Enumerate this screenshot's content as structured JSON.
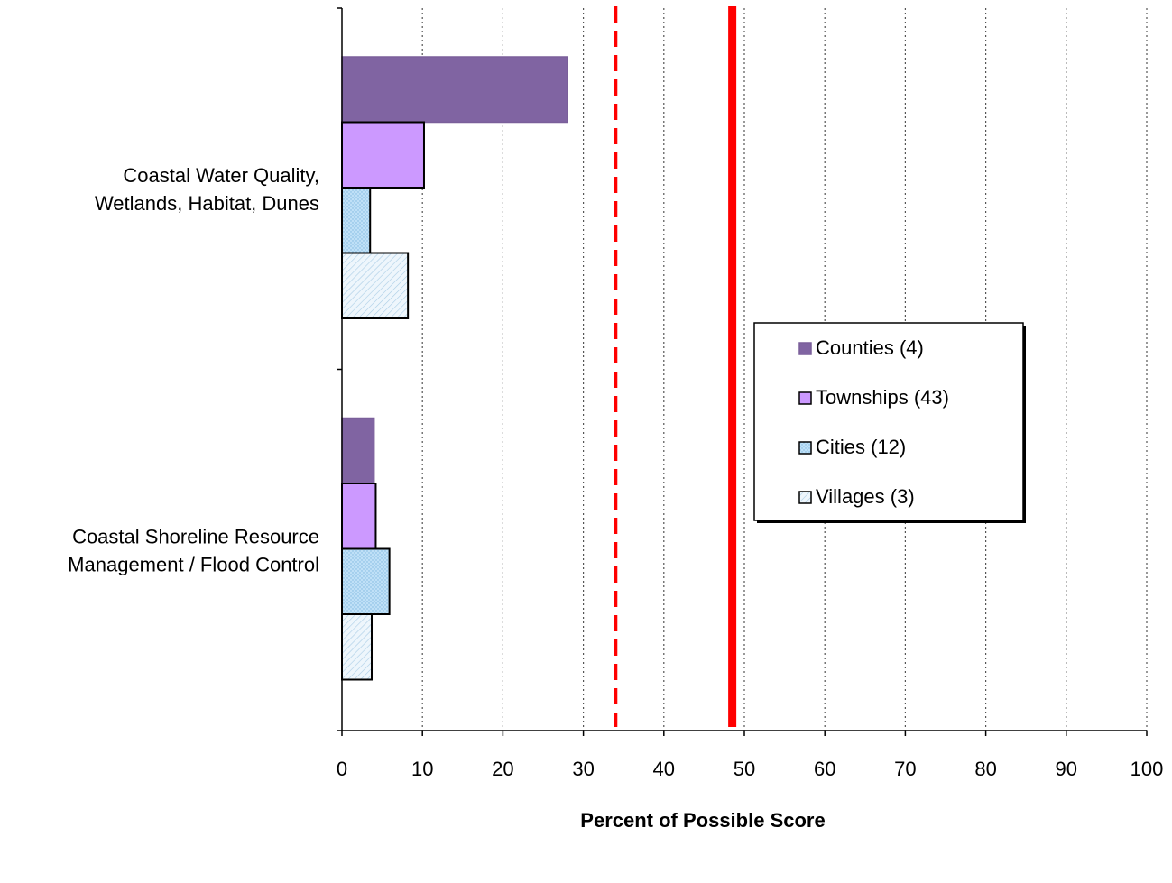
{
  "chart_data": {
    "type": "bar",
    "orientation": "horizontal",
    "xlabel": "Percent of Possible Score",
    "xlim": [
      0,
      100
    ],
    "x_ticks": [
      "0",
      "10",
      "20",
      "30",
      "40",
      "50",
      "60",
      "70",
      "80",
      "90",
      "100"
    ],
    "grid": "vertical dotted",
    "categories": [
      [
        "Coastal Water Quality,",
        "Wetlands, Habitat, Dunes"
      ],
      [
        "Coastal Shoreline Resource",
        "Management / Flood Control"
      ]
    ],
    "series": [
      {
        "name": "Counties (4)",
        "values": [
          28,
          4
        ],
        "color": "#8064a2"
      },
      {
        "name": "Townships (43)",
        "values": [
          10.2,
          4.2
        ],
        "color": "#cc99ff"
      },
      {
        "name": "Cities (12)",
        "values": [
          3.5,
          5.9
        ],
        "color": "#bfe0f7"
      },
      {
        "name": "Villages (3)",
        "values": [
          8.2,
          3.7
        ],
        "color": "#eaf4fb"
      }
    ],
    "reference_lines": [
      {
        "style": "dashed",
        "color": "#ff0000",
        "value": 34
      },
      {
        "style": "solid",
        "color": "#ff0000",
        "value": 48.5
      }
    ],
    "legend_position": "right-center"
  }
}
